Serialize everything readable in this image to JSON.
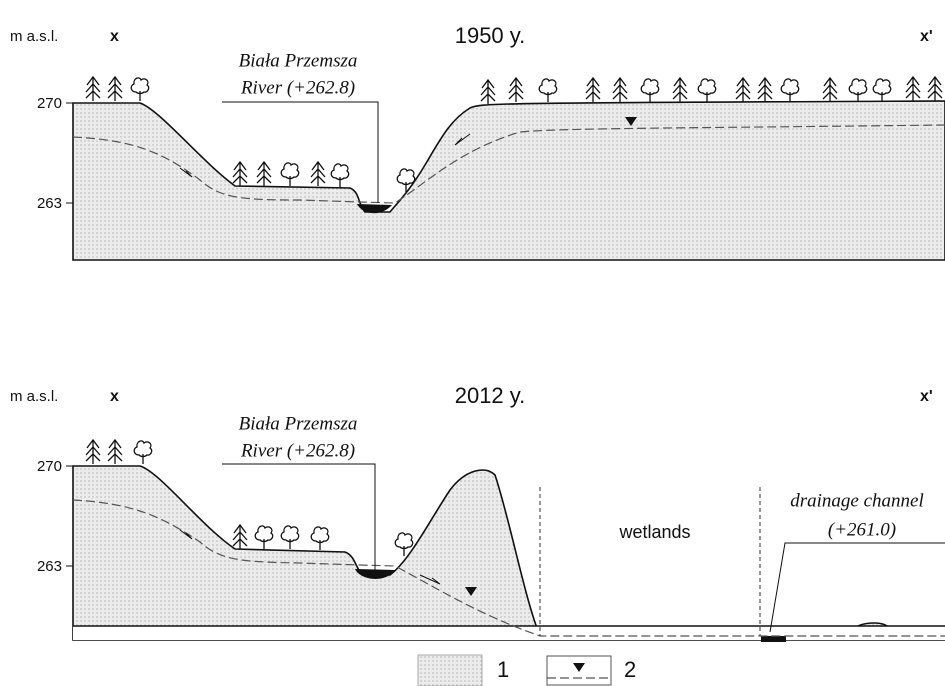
{
  "panels": [
    {
      "title": "1950 y.",
      "unit": "m a.s.l.",
      "start_label": "x",
      "end_label": "x'",
      "yticks": [
        270,
        263
      ],
      "river_label": {
        "name": "Biała Przemsza",
        "level": "River (+262.8)"
      }
    },
    {
      "title": "2012 y.",
      "unit": "m a.s.l.",
      "start_label": "x",
      "end_label": "x'",
      "yticks": [
        270,
        263
      ],
      "river_label": {
        "name": "Biała Przemsza",
        "level": "River (+262.8)"
      },
      "wetlands": "wetlands",
      "drainage_label": {
        "name": "drainage channel",
        "level": "(+261.0)"
      }
    }
  ],
  "legend": [
    "1",
    "2"
  ]
}
